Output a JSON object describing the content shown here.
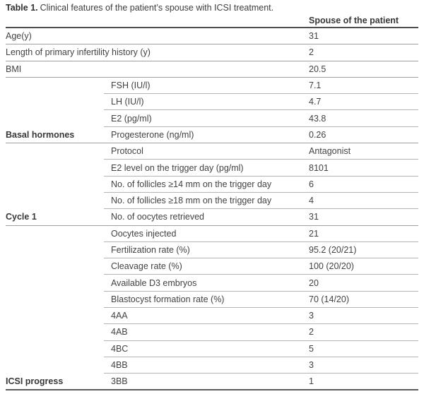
{
  "title": {
    "label": "Table 1.",
    "text": "Clinical features of the patient’s spouse with ICSI treatment."
  },
  "table": {
    "header": {
      "value_column": "Spouse of the patient"
    },
    "rows": [
      {
        "type": "toplevel",
        "group": "",
        "param": "Age(y)",
        "value": "31"
      },
      {
        "type": "toplevel",
        "group": "",
        "param": "Length of primary infertility history (y)",
        "value": "2"
      },
      {
        "type": "toplevel",
        "group": "",
        "param": "BMI",
        "value": "20.5"
      },
      {
        "type": "sub",
        "group": "",
        "param": "FSH (IU/l)",
        "value": "7.1"
      },
      {
        "type": "sub",
        "group": "",
        "param": "LH (IU/l)",
        "value": "4.7"
      },
      {
        "type": "sub",
        "group": "",
        "param": "E2 (pg/ml)",
        "value": "43.8"
      },
      {
        "type": "groupend",
        "group": "Basal hormones",
        "param": "Progesterone (ng/ml)",
        "value": "0.26"
      },
      {
        "type": "sub",
        "group": "",
        "param": "Protocol",
        "value": "Antagonist"
      },
      {
        "type": "sub",
        "group": "",
        "param": "E2 level on the trigger day (pg/ml)",
        "value": "8101"
      },
      {
        "type": "sub",
        "group": "",
        "param": "No. of follicles ≥14 mm on the trigger day",
        "value": "6"
      },
      {
        "type": "sub",
        "group": "",
        "param": "No. of follicles ≥18 mm on the trigger day",
        "value": "4"
      },
      {
        "type": "groupend",
        "group": "Cycle 1",
        "param": "No. of oocytes retrieved",
        "value": "31"
      },
      {
        "type": "sub",
        "group": "",
        "param": "Oocytes injected",
        "value": "21"
      },
      {
        "type": "sub",
        "group": "",
        "param": "Fertilization rate (%)",
        "value": "95.2 (20/21)"
      },
      {
        "type": "sub",
        "group": "",
        "param": "Cleavage rate (%)",
        "value": "100 (20/20)"
      },
      {
        "type": "sub",
        "group": "",
        "param": "Available D3 embryos",
        "value": "20"
      },
      {
        "type": "sub",
        "group": "",
        "param": "Blastocyst formation rate (%)",
        "value": "70 (14/20)"
      },
      {
        "type": "sub",
        "group": "",
        "param": "4AA",
        "value": "3"
      },
      {
        "type": "sub",
        "group": "",
        "param": "4AB",
        "value": "2"
      },
      {
        "type": "sub",
        "group": "",
        "param": "4BC",
        "value": "5"
      },
      {
        "type": "sub",
        "group": "",
        "param": "4BB",
        "value": "3"
      },
      {
        "type": "groupend",
        "group": "ICSI progress",
        "param": "3BB",
        "value": "1",
        "last": true
      }
    ]
  }
}
